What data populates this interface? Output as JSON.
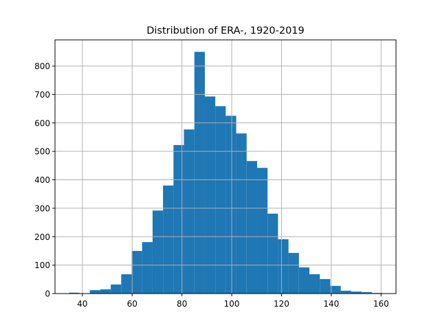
{
  "chart_data": {
    "type": "bar",
    "title": "Distribution of ERA-, 1920-2019",
    "xlabel": "",
    "ylabel": "",
    "xlim": [
      29,
      166
    ],
    "ylim": [
      0,
      892
    ],
    "grid": true,
    "legend": null,
    "bar_color": "#1f77b4",
    "grid_color": "#b0b0b0",
    "x_ticks": [
      40,
      60,
      80,
      100,
      120,
      140,
      160
    ],
    "y_ticks": [
      0,
      100,
      200,
      300,
      400,
      500,
      600,
      700,
      800
    ],
    "bin_edges": [
      34.6,
      38.8,
      43.0,
      47.2,
      51.4,
      55.6,
      59.8,
      64.0,
      68.2,
      72.4,
      76.6,
      80.8,
      85.0,
      89.2,
      93.4,
      97.6,
      101.8,
      106.0,
      110.2,
      114.4,
      118.6,
      122.8,
      127.0,
      131.2,
      135.4,
      139.6,
      143.8,
      148.0,
      152.2,
      156.4,
      160.6
    ],
    "values": [
      3,
      0,
      12,
      15,
      32,
      68,
      150,
      181,
      292,
      380,
      522,
      577,
      850,
      693,
      659,
      625,
      563,
      466,
      442,
      281,
      191,
      143,
      92,
      68,
      51,
      27,
      10,
      7,
      5,
      2
    ]
  }
}
